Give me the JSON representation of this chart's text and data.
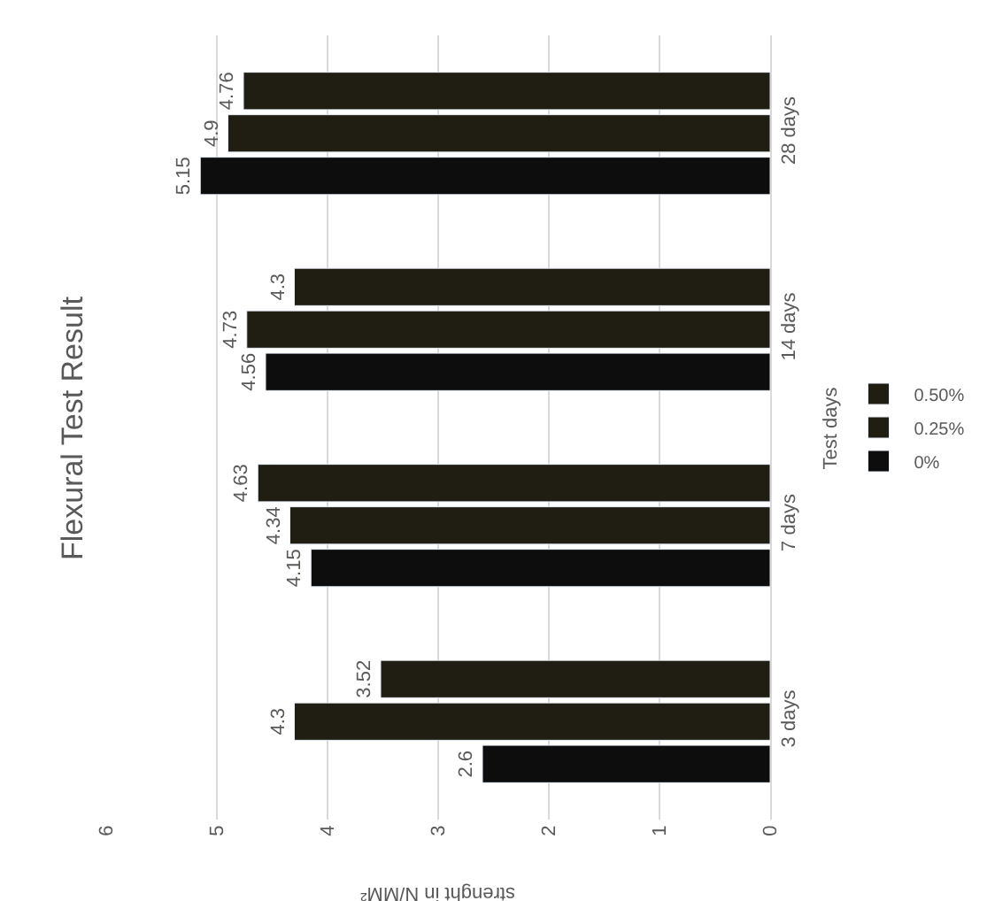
{
  "chart_data": {
    "type": "bar",
    "orientation": "horizontal",
    "title": "Flexural Test Result",
    "xlabel": "strenght in N/MM²",
    "ylabel": "Test days",
    "categories": [
      "28 days",
      "14 days",
      "7 days",
      "3 days"
    ],
    "series": [
      {
        "name": "0%",
        "color": "#0d0d0d",
        "values": [
          5.15,
          4.56,
          4.15,
          2.6
        ]
      },
      {
        "name": "0.25%",
        "color": "#201d12",
        "values": [
          4.9,
          4.73,
          4.34,
          4.3
        ]
      },
      {
        "name": "0.50%",
        "color": "#201d12",
        "values": [
          4.76,
          4.3,
          4.63,
          3.52
        ]
      }
    ],
    "xlim": [
      6,
      0
    ],
    "xticks": [
      0,
      1,
      2,
      3,
      4,
      5,
      6
    ],
    "grid": "x",
    "legend": "right",
    "data_labels": true
  }
}
